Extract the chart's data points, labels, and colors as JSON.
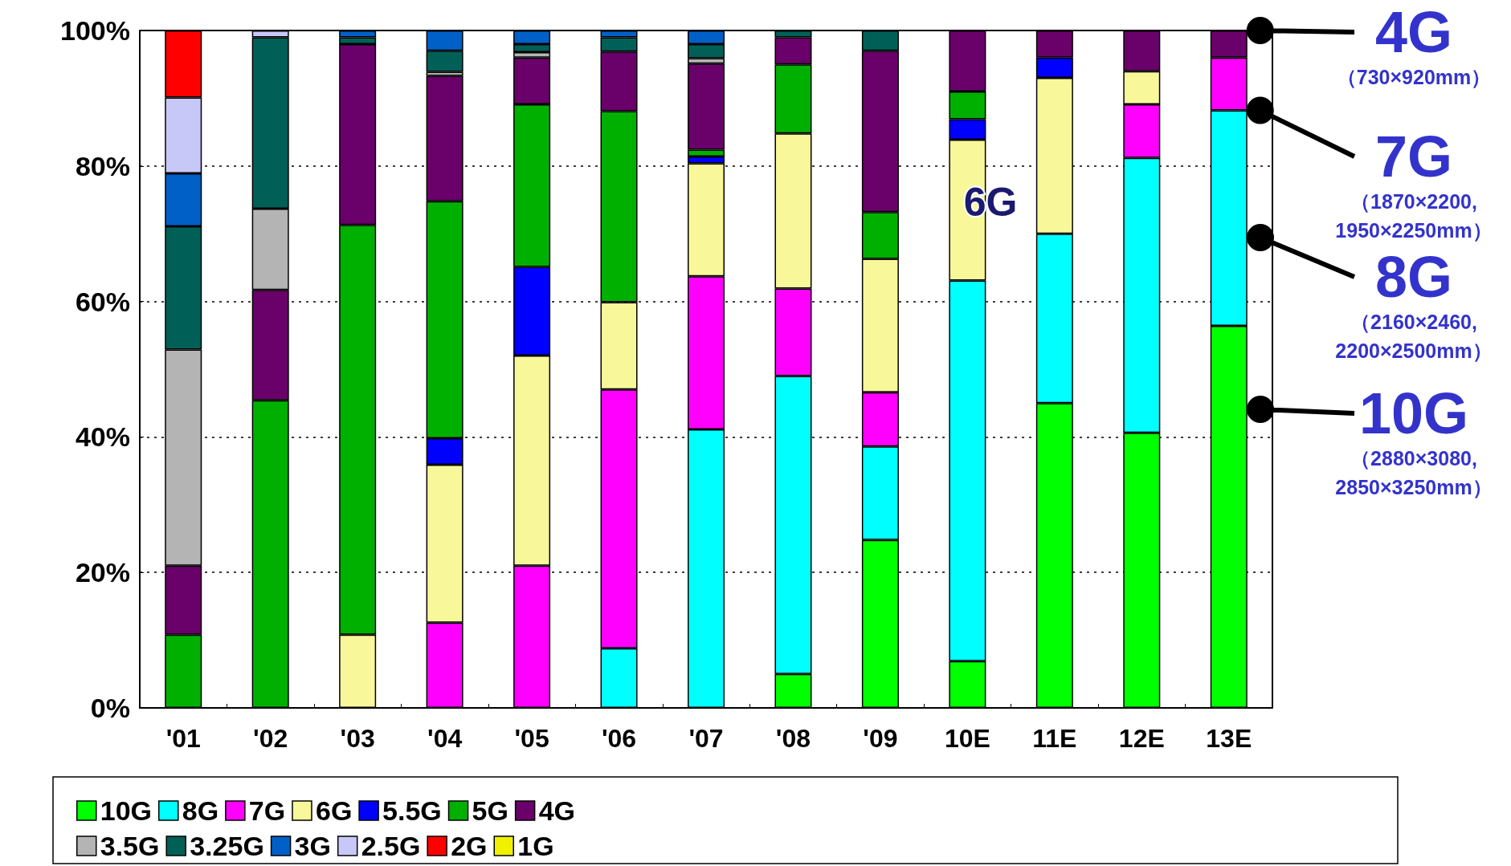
{
  "chart_data": {
    "type": "bar",
    "stacked": true,
    "categories": [
      "'01",
      "'02",
      "'03",
      "'04",
      "'05",
      "'06",
      "'07",
      "'08",
      "'09",
      "10E",
      "11E",
      "12E",
      "13E"
    ],
    "ylim": [
      0,
      100
    ],
    "yticks": [
      {
        "value": 0,
        "label": "0%"
      },
      {
        "value": 20,
        "label": "20%"
      },
      {
        "value": 40,
        "label": "40%"
      },
      {
        "value": 60,
        "label": "60%"
      },
      {
        "value": 80,
        "label": "80%"
      },
      {
        "value": 100,
        "label": "100%"
      }
    ],
    "grid": "y",
    "legend": "bottom",
    "series": [
      {
        "name": "10G",
        "color": "#00ff00",
        "values": [
          null,
          null,
          null,
          null,
          null,
          null,
          null,
          5.0,
          24.8,
          6.9,
          45.0,
          40.6,
          56.4
        ]
      },
      {
        "name": "8G",
        "color": "#00ffff",
        "values": [
          null,
          null,
          null,
          null,
          null,
          8.8,
          41.1,
          44.0,
          13.8,
          56.2,
          25.0,
          40.6,
          31.8
        ]
      },
      {
        "name": "7G",
        "color": "#ff00ff",
        "values": [
          null,
          null,
          null,
          12.6,
          21.0,
          38.2,
          22.6,
          12.9,
          8.0,
          null,
          null,
          7.9,
          7.8
        ]
      },
      {
        "name": "6G",
        "color": "#f8f89a",
        "values": [
          null,
          null,
          10.8,
          23.3,
          31.0,
          12.9,
          16.7,
          22.9,
          19.7,
          20.8,
          23.0,
          4.9,
          null
        ]
      },
      {
        "name": "5.5G",
        "color": "#0000ff",
        "values": [
          null,
          null,
          null,
          3.9,
          13.1,
          null,
          1.0,
          null,
          null,
          3.0,
          3.0,
          null,
          null
        ]
      },
      {
        "name": "5G",
        "color": "#00b000",
        "values": [
          10.8,
          45.4,
          60.5,
          35.0,
          24.0,
          28.2,
          1.0,
          10.2,
          6.9,
          4.1,
          null,
          null,
          null
        ]
      },
      {
        "name": "4G",
        "color": "#6a006a",
        "values": [
          10.2,
          16.3,
          26.7,
          18.5,
          6.9,
          8.8,
          12.7,
          4.0,
          23.8,
          9.0,
          4.0,
          6.0,
          4.0
        ]
      },
      {
        "name": "3.5G",
        "color": "#b4b4b4",
        "values": [
          31.9,
          12.0,
          null,
          0.6,
          0.8,
          null,
          0.8,
          null,
          null,
          null,
          null,
          null,
          null
        ]
      },
      {
        "name": "3.25G",
        "color": "#006058",
        "values": [
          18.2,
          25.3,
          1.0,
          3.1,
          1.2,
          2.1,
          2.1,
          1.0,
          3.0,
          null,
          null,
          null,
          null
        ]
      },
      {
        "name": "3G",
        "color": "#0060c8",
        "values": [
          7.8,
          null,
          1.0,
          3.0,
          2.0,
          1.0,
          2.0,
          null,
          null,
          null,
          null,
          null,
          null
        ]
      },
      {
        "name": "2.5G",
        "color": "#c8c8f8",
        "values": [
          11.2,
          1.0,
          null,
          null,
          null,
          null,
          null,
          null,
          null,
          null,
          null,
          null,
          null
        ]
      },
      {
        "name": "2G",
        "color": "#ff0000",
        "values": [
          9.9,
          null,
          null,
          null,
          null,
          null,
          null,
          null,
          null,
          null,
          null,
          null,
          null
        ]
      },
      {
        "name": "1G",
        "color": "#f0f000",
        "values": [
          null,
          null,
          null,
          null,
          null,
          null,
          null,
          null,
          null,
          null,
          null,
          null,
          null
        ]
      }
    ],
    "annotations": [
      "6G",
      {
        "text": "4G\n（730×920mm）",
        "x": "13E",
        "y": 100
      },
      {
        "text": "7G\n（1870×2200,\n1950×2250mm）",
        "x": "13E",
        "y": 88.2
      },
      "8G\n（2160×2460,\n2200×2500mm）",
      "10G\n（2880×3080,\n2850×3250mm）"
    ]
  }
}
